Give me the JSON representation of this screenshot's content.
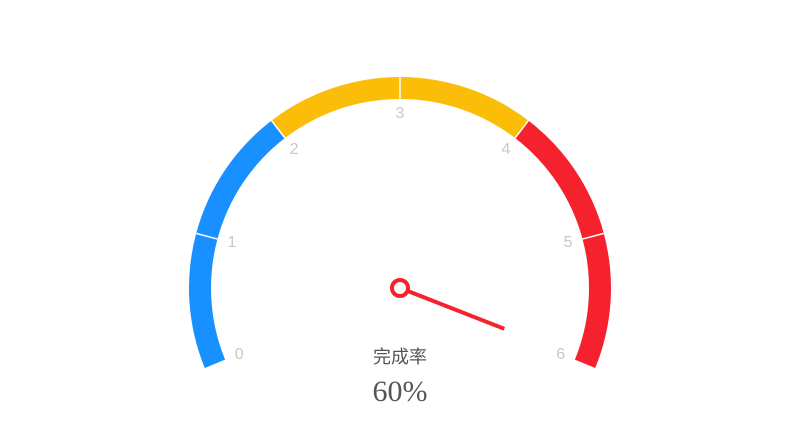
{
  "chart_data": {
    "type": "gauge",
    "lim": [
      0,
      6
    ],
    "ticks": [
      0,
      1,
      2,
      3,
      4,
      5,
      6
    ],
    "bands": [
      {
        "from": 0,
        "to": 2,
        "color": "#1890ff"
      },
      {
        "from": 2,
        "to": 4,
        "color": "#fbbd08"
      },
      {
        "from": 4,
        "to": 6,
        "color": "#f5222d"
      }
    ],
    "value": 5.97,
    "needle_color": "#f5222d",
    "label": "完成率",
    "detail_text": "60%"
  }
}
